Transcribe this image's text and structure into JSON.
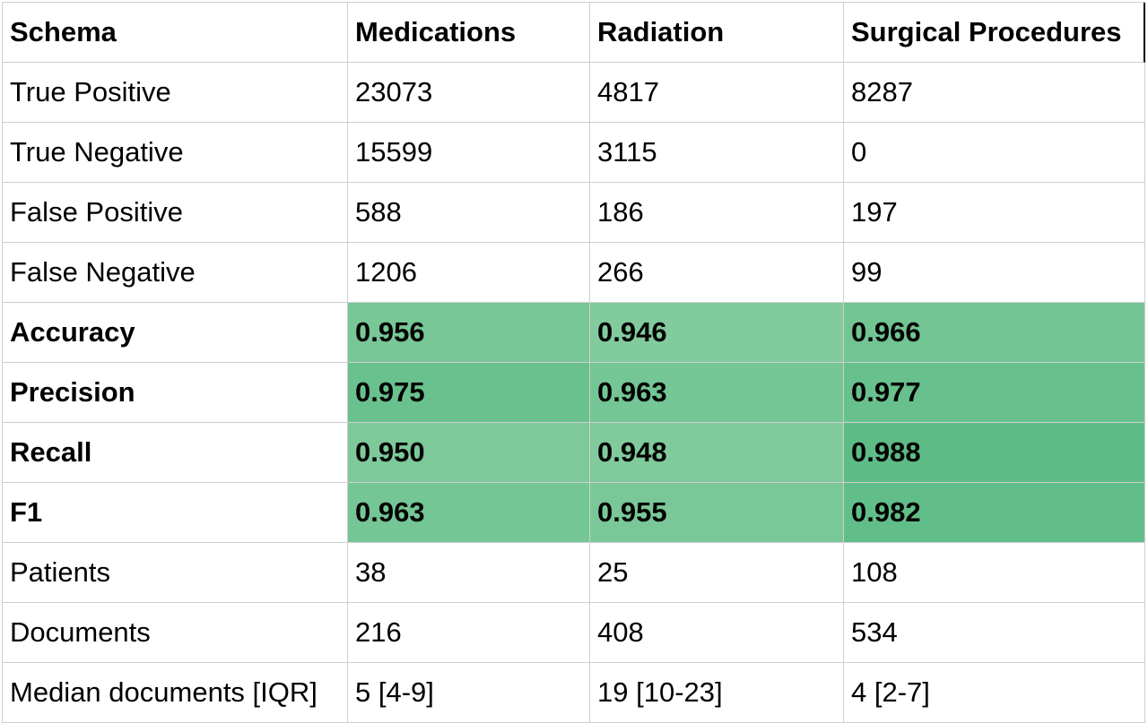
{
  "table": {
    "headers": [
      "Schema",
      "Medications",
      "Radiation",
      "Surgical Procedures"
    ],
    "rows": [
      {
        "label": "True Positive",
        "bold": false,
        "cells": [
          {
            "v": "23073"
          },
          {
            "v": "4817"
          },
          {
            "v": "8287"
          }
        ]
      },
      {
        "label": "True Negative",
        "bold": false,
        "cells": [
          {
            "v": "15599"
          },
          {
            "v": "3115"
          },
          {
            "v": "0"
          }
        ]
      },
      {
        "label": "False Positive",
        "bold": false,
        "cells": [
          {
            "v": "588"
          },
          {
            "v": "186"
          },
          {
            "v": "197"
          }
        ]
      },
      {
        "label": "False Negative",
        "bold": false,
        "cells": [
          {
            "v": "1206"
          },
          {
            "v": "266"
          },
          {
            "v": "99"
          }
        ]
      },
      {
        "label": "Accuracy",
        "bold": true,
        "cells": [
          {
            "v": "0.956",
            "bg": "#78c797"
          },
          {
            "v": "0.946",
            "bg": "#82cb9d"
          },
          {
            "v": "0.966",
            "bg": "#72c593"
          }
        ]
      },
      {
        "label": "Precision",
        "bold": true,
        "cells": [
          {
            "v": "0.975",
            "bg": "#69c18d"
          },
          {
            "v": "0.963",
            "bg": "#74c694"
          },
          {
            "v": "0.977",
            "bg": "#68c18c"
          }
        ]
      },
      {
        "label": "Recall",
        "bold": true,
        "cells": [
          {
            "v": "0.950",
            "bg": "#7dc99a"
          },
          {
            "v": "0.948",
            "bg": "#80ca9c"
          },
          {
            "v": "0.988",
            "bg": "#5dbc86"
          }
        ]
      },
      {
        "label": "F1",
        "bold": true,
        "cells": [
          {
            "v": "0.963",
            "bg": "#74c694"
          },
          {
            "v": "0.955",
            "bg": "#7ac898"
          },
          {
            "v": "0.982",
            "bg": "#62be89"
          }
        ]
      },
      {
        "label": "Patients",
        "bold": false,
        "cells": [
          {
            "v": "38"
          },
          {
            "v": "25"
          },
          {
            "v": "108"
          }
        ]
      },
      {
        "label": "Documents",
        "bold": false,
        "cells": [
          {
            "v": "216"
          },
          {
            "v": "408"
          },
          {
            "v": "534"
          }
        ]
      },
      {
        "label": "Median documents [IQR]",
        "bold": false,
        "cells": [
          {
            "v": "5 [4-9]"
          },
          {
            "v": "19 [10-23]"
          },
          {
            "v": "4 [2-7]"
          }
        ]
      }
    ]
  }
}
